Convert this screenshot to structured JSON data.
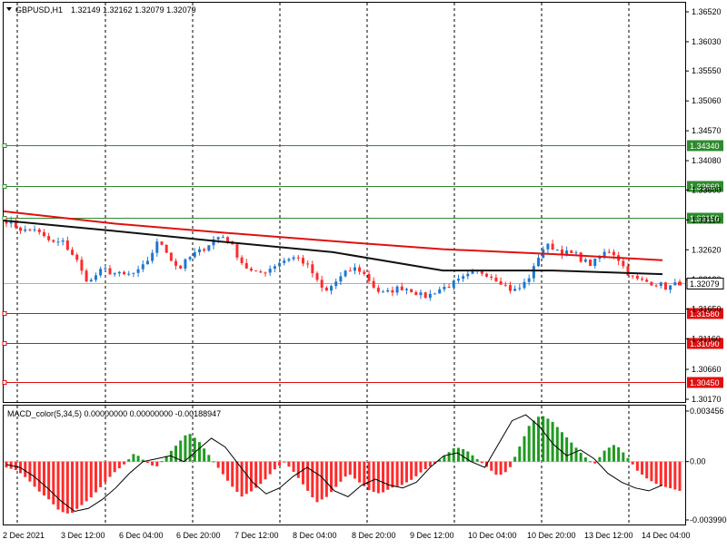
{
  "header": {
    "symbol_timeframe": "GBPUSD,H1",
    "ohlc": "1.32149 1.32162 1.32079 1.32079"
  },
  "macd_header": "MACD_color(5,34,5) 0.00000000 0.00000000 -0.00188947",
  "colors": {
    "bull": "#1f77d0",
    "bear": "#ff2b2b",
    "ma_slow": "#e01010",
    "ma_fast": "#111111",
    "support": "#e01010",
    "resistance": "#2e8b2e",
    "grid": "#000000",
    "hist_pos": "#219a21",
    "hist_neg": "#ff2b2b",
    "signal": "#000000"
  },
  "chart_data": [
    {
      "type": "candlestick",
      "title": "GBPUSD,H1",
      "ylim": [
        1.3017,
        1.3652
      ],
      "y_ticks": [
        "1.36520",
        "1.36030",
        "1.35550",
        "1.35060",
        "1.34570",
        "1.34080",
        "1.33600",
        "1.33110",
        "1.32620",
        "1.32130",
        "1.31650",
        "1.31160",
        "1.30660",
        "1.30170"
      ],
      "x_ticks": [
        "2 Dec 2021",
        "3 Dec 12:00",
        "6 Dec 04:00",
        "6 Dec 20:00",
        "7 Dec 12:00",
        "8 Dec 04:00",
        "8 Dec 20:00",
        "9 Dec 12:00",
        "10 Dec 04:00",
        "10 Dec 20:00",
        "13 Dec 12:00",
        "14 Dec 04:00"
      ],
      "close_anchors": [
        1.331,
        1.3303,
        1.3296,
        1.3292,
        1.3298,
        1.3285,
        1.3278,
        1.3272,
        1.3276,
        1.3262,
        1.3248,
        1.3222,
        1.3208,
        1.3222,
        1.323,
        1.3225,
        1.3222,
        1.322,
        1.3222,
        1.3226,
        1.3238,
        1.3258,
        1.3278,
        1.3262,
        1.324,
        1.3232,
        1.3245,
        1.3255,
        1.326,
        1.327,
        1.328,
        1.3285,
        1.3278,
        1.3258,
        1.324,
        1.3228,
        1.3222,
        1.3226,
        1.3232,
        1.324,
        1.3245,
        1.325,
        1.3248,
        1.324,
        1.3226,
        1.3204,
        1.3192,
        1.3205,
        1.3215,
        1.3225,
        1.3232,
        1.3228,
        1.3216,
        1.32,
        1.319,
        1.3192,
        1.3198,
        1.32,
        1.3198,
        1.3192,
        1.3185,
        1.3188,
        1.3196,
        1.32,
        1.3205,
        1.321,
        1.3216,
        1.3222,
        1.3226,
        1.3224,
        1.3218,
        1.3212,
        1.3202,
        1.3194,
        1.32,
        1.3212,
        1.3232,
        1.3262,
        1.3268,
        1.3265,
        1.3258,
        1.3256,
        1.3254,
        1.3245,
        1.3238,
        1.3244,
        1.3256,
        1.3262,
        1.325,
        1.3232,
        1.3218,
        1.3212,
        1.321,
        1.3208,
        1.3206,
        1.32,
        1.3203,
        1.3208
      ],
      "indicators": [
        {
          "name": "MA slow",
          "color": "#e01010",
          "values": [
            1.3325,
            1.3305,
            1.329,
            1.3276,
            1.3263,
            1.3255,
            1.3245
          ]
        },
        {
          "name": "MA fast",
          "color": "#111111",
          "values": [
            1.331,
            1.3293,
            1.3275,
            1.3258,
            1.3228,
            1.3228,
            1.3222
          ]
        }
      ],
      "levels": [
        {
          "label": "1.34340",
          "value": 1.3434,
          "kind": "resistance"
        },
        {
          "label": "1.33660",
          "value": 1.3366,
          "kind": "resistance"
        },
        {
          "label": "1.33150",
          "value": 1.3315,
          "kind": "resistance"
        },
        {
          "label": "1.31580",
          "value": 1.3158,
          "kind": "support"
        },
        {
          "label": "1.31090",
          "value": 1.3109,
          "kind": "support"
        },
        {
          "label": "1.30450",
          "value": 1.3045,
          "kind": "support"
        }
      ],
      "current_price": {
        "label": "1.32079",
        "value": 1.32079
      }
    },
    {
      "type": "histogram",
      "title": "MACD_color(5,34,5)",
      "ylim": [
        -0.00399,
        0.003456
      ],
      "y_ticks": [
        "0.003456",
        "0.00",
        "-0.003990"
      ],
      "hist_anchors": [
        -0.0004,
        -0.0006,
        -0.0012,
        -0.002,
        -0.0026,
        -0.0034,
        -0.0036,
        -0.003,
        -0.0024,
        -0.0016,
        -0.0008,
        -0.0002,
        0.0006,
        0.0,
        -0.0004,
        0.0004,
        0.0012,
        0.002,
        0.0014,
        0.0004,
        -0.0006,
        -0.0016,
        -0.0024,
        -0.002,
        -0.0014,
        -0.0006,
        0.0,
        -0.0008,
        -0.0018,
        -0.0028,
        -0.0024,
        -0.0016,
        -0.0008,
        -0.0014,
        -0.002,
        -0.0022,
        -0.0018,
        -0.0016,
        -0.0012,
        -0.0006,
        -0.0002,
        0.0004,
        0.001,
        0.0008,
        0.0002,
        -0.0004,
        -0.001,
        -0.0006,
        0.001,
        0.0026,
        0.0032,
        0.0028,
        0.002,
        0.0012,
        0.0004,
        -0.0002,
        0.0008,
        0.0012,
        0.0004,
        -0.0006,
        -0.0012,
        -0.0016,
        -0.0018,
        -0.002
      ],
      "signal_anchors": [
        -0.0002,
        -0.0004,
        -0.001,
        -0.0018,
        -0.0027,
        -0.0034,
        -0.0032,
        -0.0026,
        -0.0018,
        -0.0008,
        0.0,
        0.0002,
        0.0004,
        0.0,
        0.0008,
        0.0016,
        0.001,
        -0.0002,
        -0.0014,
        -0.0022,
        -0.0018,
        -0.001,
        -0.0004,
        -0.001,
        -0.002,
        -0.0024,
        -0.0016,
        -0.0012,
        -0.0016,
        -0.0018,
        -0.0014,
        -0.0004,
        0.0004,
        0.0006,
        0.0,
        -0.0004,
        0.0012,
        0.0028,
        0.0032,
        0.0024,
        0.0012,
        0.0004,
        0.0008,
        0.0002,
        -0.0008,
        -0.0014,
        -0.0018,
        -0.002,
        -0.0016
      ]
    }
  ]
}
